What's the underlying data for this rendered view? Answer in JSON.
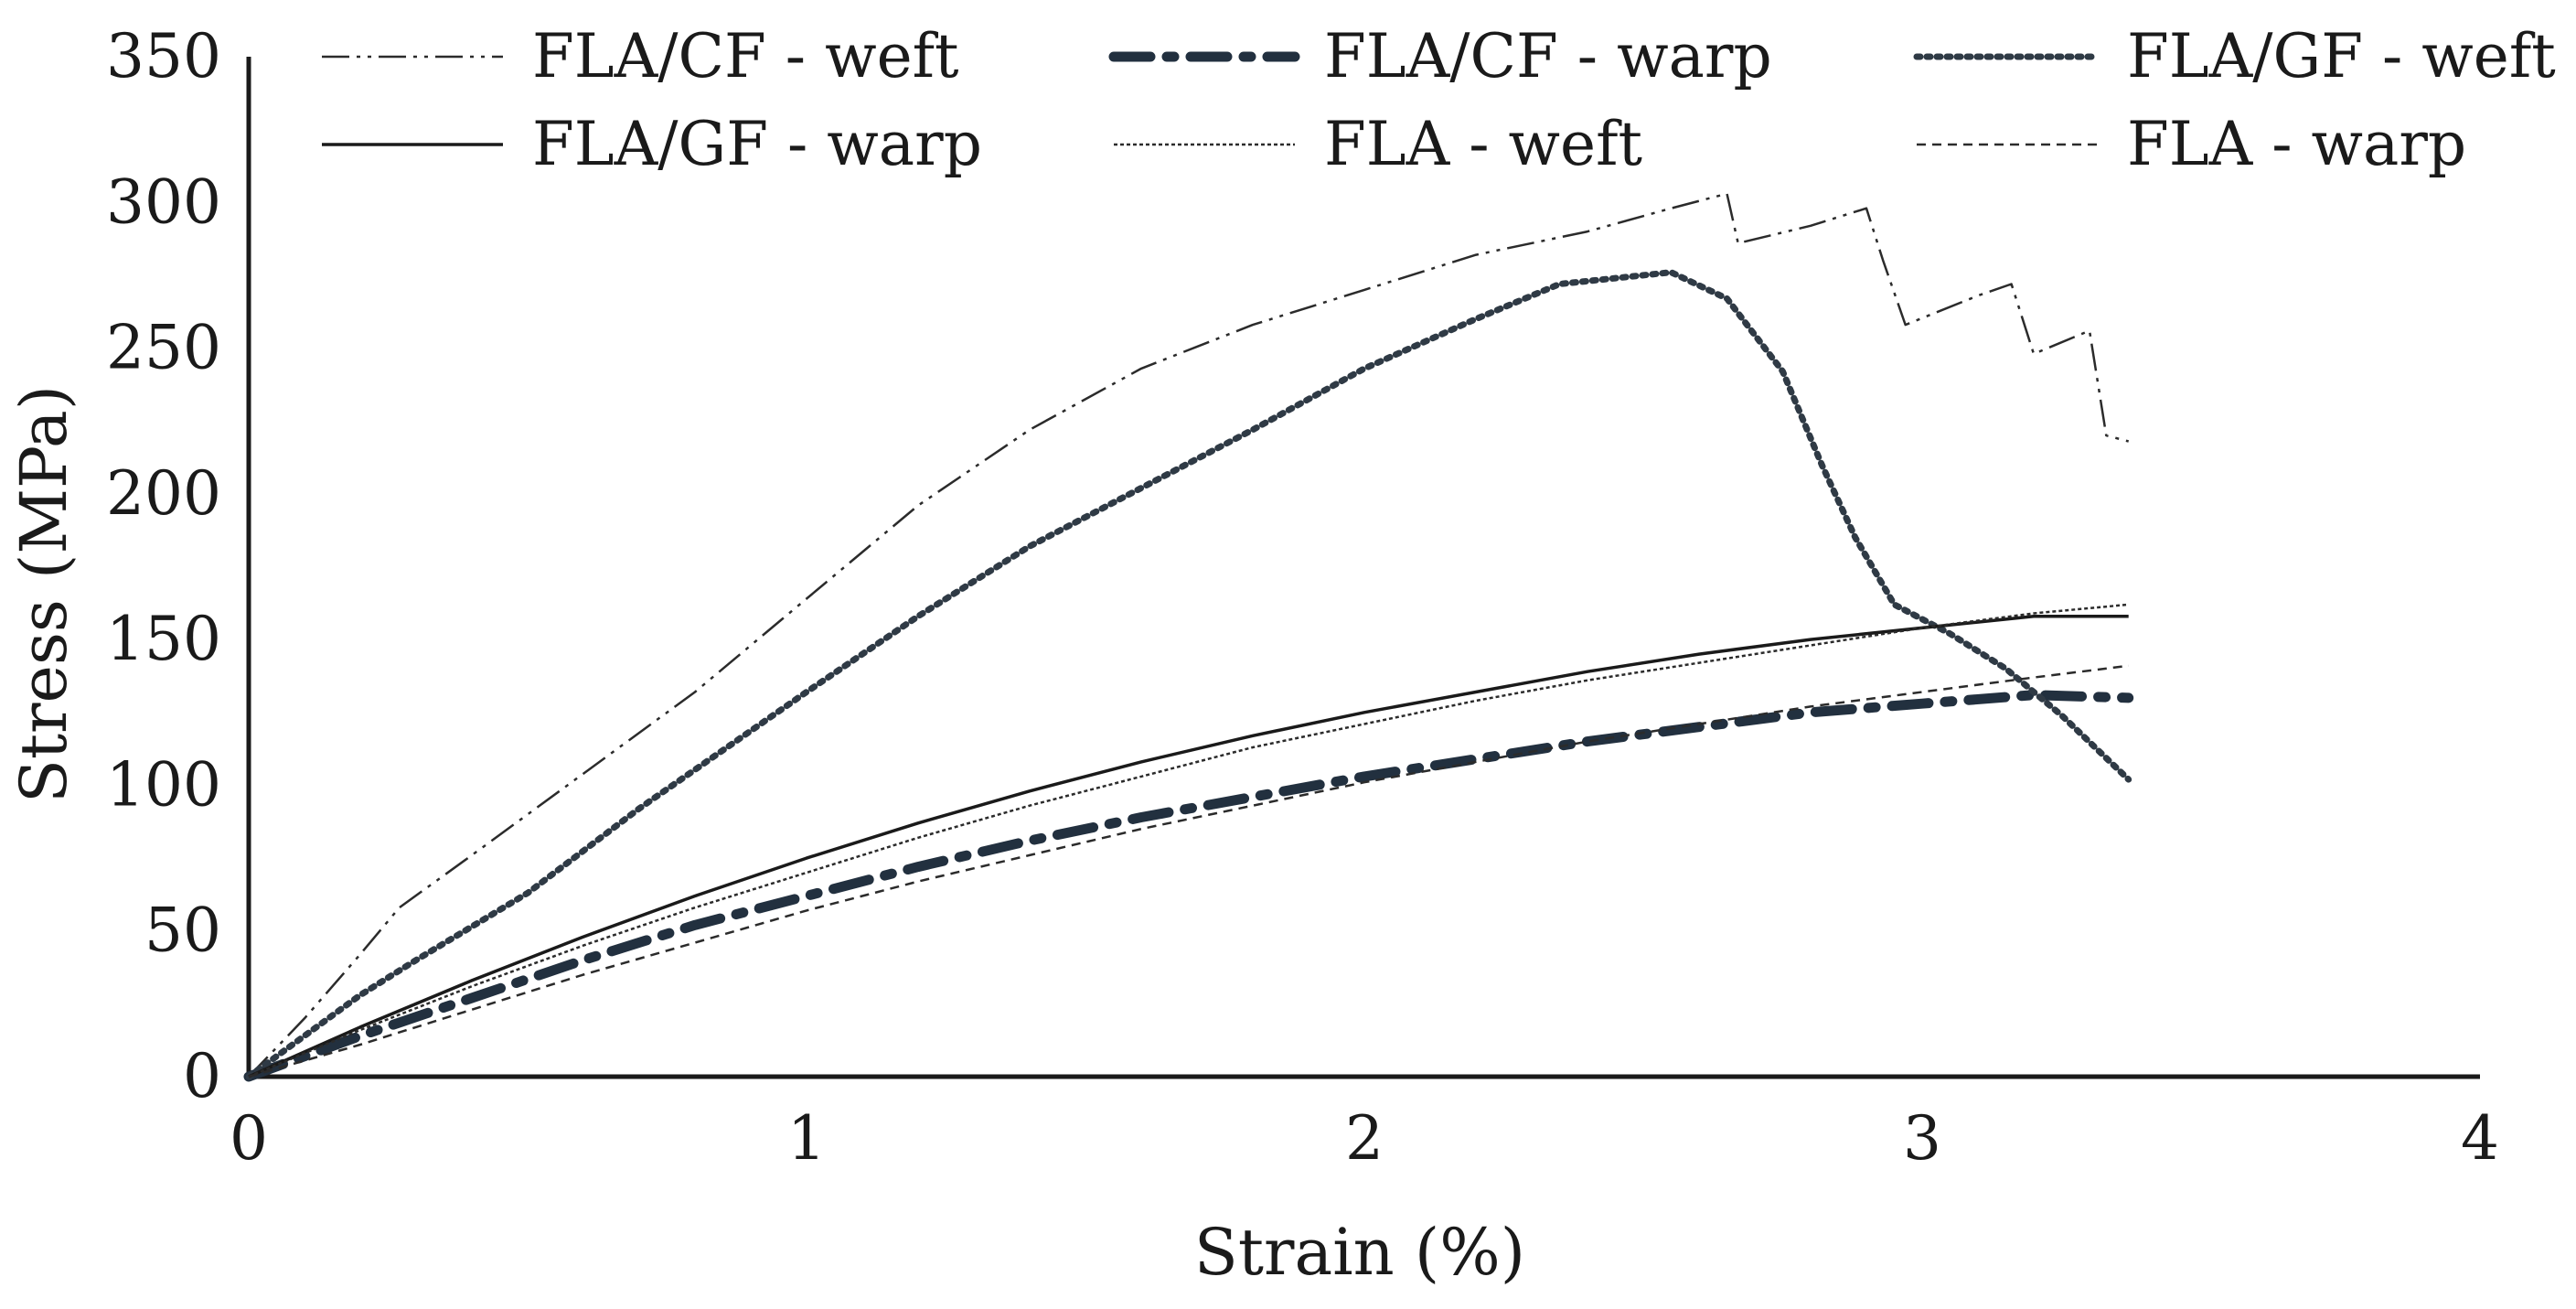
{
  "chart_data": {
    "type": "line",
    "title": "",
    "xlabel": "Strain (%)",
    "ylabel": "Stress (MPa)",
    "xlim": [
      0,
      4
    ],
    "ylim": [
      0,
      350
    ],
    "x_ticks": [
      "0",
      "1",
      "2",
      "3",
      "4"
    ],
    "y_ticks": [
      "0",
      "50",
      "100",
      "150",
      "200",
      "250",
      "300",
      "350"
    ],
    "grid": false,
    "legend_position": "top",
    "series": [
      {
        "name": "FLA/CF - weft",
        "color": "#2b2b2b",
        "style": "dash-dot-dot-thin",
        "points": [
          [
            0,
            0
          ],
          [
            0.1,
            20
          ],
          [
            0.2,
            42
          ],
          [
            0.27,
            58
          ],
          [
            0.4,
            76
          ],
          [
            0.6,
            104
          ],
          [
            0.8,
            132
          ],
          [
            1.0,
            164
          ],
          [
            1.2,
            196
          ],
          [
            1.4,
            222
          ],
          [
            1.6,
            243
          ],
          [
            1.8,
            258
          ],
          [
            2.0,
            270
          ],
          [
            2.2,
            282
          ],
          [
            2.4,
            290
          ],
          [
            2.55,
            298
          ],
          [
            2.65,
            303
          ],
          [
            2.67,
            286
          ],
          [
            2.8,
            292
          ],
          [
            2.9,
            298
          ],
          [
            2.93,
            280
          ],
          [
            2.97,
            258
          ],
          [
            3.1,
            268
          ],
          [
            3.16,
            272
          ],
          [
            3.2,
            248
          ],
          [
            3.3,
            256
          ],
          [
            3.33,
            220
          ],
          [
            3.37,
            218
          ]
        ]
      },
      {
        "name": "FLA/CF - warp",
        "color": "#22303f",
        "style": "dash-dot-thick",
        "points": [
          [
            0,
            0
          ],
          [
            0.2,
            14
          ],
          [
            0.4,
            27
          ],
          [
            0.6,
            40
          ],
          [
            0.8,
            52
          ],
          [
            1.0,
            62
          ],
          [
            1.2,
            72
          ],
          [
            1.4,
            81
          ],
          [
            1.6,
            89
          ],
          [
            1.8,
            96
          ],
          [
            2.0,
            103
          ],
          [
            2.2,
            109
          ],
          [
            2.4,
            115
          ],
          [
            2.6,
            120
          ],
          [
            2.8,
            125
          ],
          [
            3.0,
            128
          ],
          [
            3.2,
            131
          ],
          [
            3.37,
            130
          ]
        ]
      },
      {
        "name": "FLA/GF - weft",
        "color": "#2f3a45",
        "style": "dotted",
        "points": [
          [
            0,
            0
          ],
          [
            0.1,
            14
          ],
          [
            0.2,
            28
          ],
          [
            0.3,
            40
          ],
          [
            0.5,
            63
          ],
          [
            0.7,
            92
          ],
          [
            1.0,
            132
          ],
          [
            1.2,
            158
          ],
          [
            1.4,
            182
          ],
          [
            1.6,
            202
          ],
          [
            1.8,
            222
          ],
          [
            2.0,
            243
          ],
          [
            2.2,
            260
          ],
          [
            2.35,
            272
          ],
          [
            2.45,
            274
          ],
          [
            2.55,
            276
          ],
          [
            2.65,
            267
          ],
          [
            2.75,
            242
          ],
          [
            2.82,
            210
          ],
          [
            2.88,
            185
          ],
          [
            2.95,
            162
          ],
          [
            3.05,
            152
          ],
          [
            3.15,
            140
          ],
          [
            3.25,
            124
          ],
          [
            3.37,
            102
          ]
        ]
      },
      {
        "name": "FLA/GF - warp",
        "color": "#1a1a1a",
        "style": "solid",
        "points": [
          [
            0,
            0
          ],
          [
            0.2,
            17
          ],
          [
            0.4,
            33
          ],
          [
            0.6,
            48
          ],
          [
            0.8,
            62
          ],
          [
            1.0,
            75
          ],
          [
            1.2,
            87
          ],
          [
            1.4,
            98
          ],
          [
            1.6,
            108
          ],
          [
            1.8,
            117
          ],
          [
            2.0,
            125
          ],
          [
            2.2,
            132
          ],
          [
            2.4,
            139
          ],
          [
            2.6,
            145
          ],
          [
            2.8,
            150
          ],
          [
            3.0,
            154
          ],
          [
            3.2,
            158
          ],
          [
            3.37,
            158
          ]
        ]
      },
      {
        "name": "FLA - weft",
        "color": "#2b2b2b",
        "style": "fine-dotted",
        "points": [
          [
            0,
            0
          ],
          [
            0.2,
            16
          ],
          [
            0.4,
            31
          ],
          [
            0.6,
            45
          ],
          [
            0.8,
            58
          ],
          [
            1.0,
            70
          ],
          [
            1.2,
            82
          ],
          [
            1.4,
            93
          ],
          [
            1.6,
            103
          ],
          [
            1.8,
            113
          ],
          [
            2.0,
            121
          ],
          [
            2.2,
            129
          ],
          [
            2.4,
            136
          ],
          [
            2.6,
            142
          ],
          [
            2.8,
            148
          ],
          [
            3.0,
            154
          ],
          [
            3.2,
            159
          ],
          [
            3.37,
            162
          ]
        ]
      },
      {
        "name": "FLA - warp",
        "color": "#2b2b2b",
        "style": "short-dash",
        "points": [
          [
            0,
            0
          ],
          [
            0.2,
            11
          ],
          [
            0.4,
            23
          ],
          [
            0.6,
            35
          ],
          [
            0.8,
            46
          ],
          [
            1.0,
            57
          ],
          [
            1.2,
            67
          ],
          [
            1.4,
            76
          ],
          [
            1.6,
            85
          ],
          [
            1.8,
            93
          ],
          [
            2.0,
            101
          ],
          [
            2.2,
            108
          ],
          [
            2.4,
            115
          ],
          [
            2.6,
            121
          ],
          [
            2.8,
            127
          ],
          [
            3.0,
            132
          ],
          [
            3.2,
            137
          ],
          [
            3.37,
            141
          ]
        ]
      }
    ]
  }
}
